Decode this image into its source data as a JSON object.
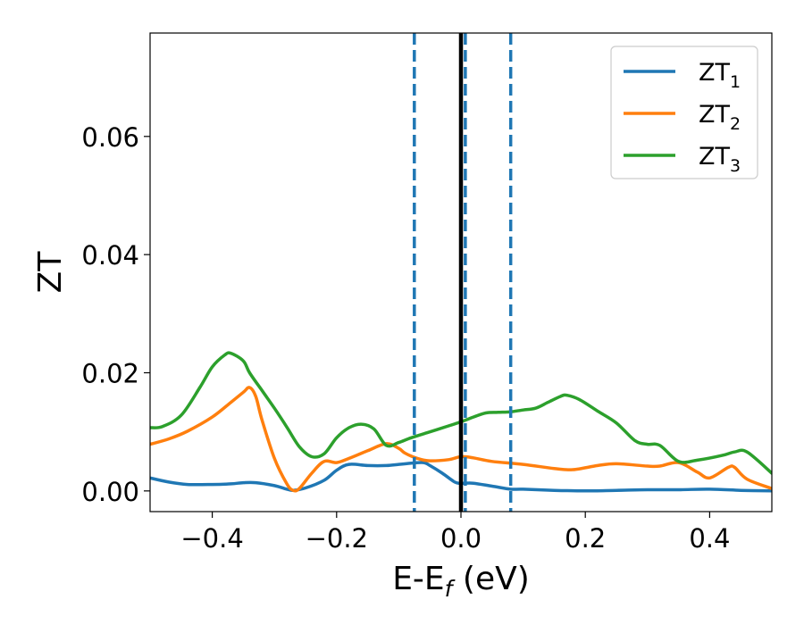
{
  "colors": {
    "zt1": "#1f77b4",
    "zt2": "#ff7f0e",
    "zt3": "#2ca02c",
    "fermi_line": "#000000",
    "dashed_lines": "#1f77b4"
  },
  "chart_data": {
    "type": "line",
    "xlabel": "E-E",
    "xlabel_sub": "f",
    "xlabel_unit": " (eV)",
    "ylabel": "ZT",
    "xlim": [
      -0.5,
      0.5
    ],
    "ylim": [
      -0.0035,
      0.0775
    ],
    "xticks": [
      -0.4,
      -0.2,
      0.0,
      0.2,
      0.4
    ],
    "xtick_labels": [
      "−0.4",
      "−0.2",
      "0.0",
      "0.2",
      "0.4"
    ],
    "yticks": [
      0.0,
      0.02,
      0.04,
      0.06
    ],
    "ytick_labels": [
      "0.00",
      "0.02",
      "0.04",
      "0.06"
    ],
    "legend_position": "top-right",
    "grid": false,
    "vertical_lines": [
      {
        "x": 0.0,
        "style": "solid",
        "color": "#000000"
      },
      {
        "x": -0.075,
        "style": "dashed",
        "color": "#1f77b4"
      },
      {
        "x": 0.007,
        "style": "dashed",
        "color": "#1f77b4"
      },
      {
        "x": 0.08,
        "style": "dashed",
        "color": "#1f77b4"
      }
    ],
    "series": [
      {
        "name": "ZT",
        "sub": "1",
        "color": "#1f77b4",
        "x": [
          -0.5,
          -0.47,
          -0.44,
          -0.4,
          -0.37,
          -0.35,
          -0.33,
          -0.3,
          -0.28,
          -0.27,
          -0.25,
          -0.22,
          -0.2,
          -0.18,
          -0.15,
          -0.12,
          -0.1,
          -0.08,
          -0.06,
          -0.05,
          -0.03,
          -0.01,
          0.0,
          0.02,
          0.05,
          0.08,
          0.1,
          0.15,
          0.2,
          0.25,
          0.3,
          0.35,
          0.4,
          0.45,
          0.5
        ],
        "y": [
          0.0022,
          0.0015,
          0.0011,
          0.0011,
          0.0012,
          0.0014,
          0.0014,
          0.0009,
          0.0003,
          0.0001,
          0.0005,
          0.0018,
          0.0035,
          0.0045,
          0.0043,
          0.0043,
          0.0045,
          0.0047,
          0.0048,
          0.0043,
          0.003,
          0.0015,
          0.0013,
          0.0013,
          0.0008,
          0.0003,
          0.0003,
          0.0001,
          0.0,
          0.0001,
          0.0002,
          0.0002,
          0.0003,
          0.0001,
          0.0
        ]
      },
      {
        "name": "ZT",
        "sub": "2",
        "color": "#ff7f0e",
        "x": [
          -0.5,
          -0.47,
          -0.44,
          -0.4,
          -0.37,
          -0.35,
          -0.34,
          -0.33,
          -0.32,
          -0.3,
          -0.28,
          -0.27,
          -0.26,
          -0.24,
          -0.22,
          -0.2,
          -0.18,
          -0.15,
          -0.12,
          -0.1,
          -0.09,
          -0.07,
          -0.05,
          -0.02,
          0.0,
          0.02,
          0.05,
          0.1,
          0.15,
          0.18,
          0.22,
          0.25,
          0.3,
          0.32,
          0.35,
          0.38,
          0.4,
          0.43,
          0.44,
          0.46,
          0.5
        ],
        "y": [
          0.0079,
          0.0088,
          0.0101,
          0.0125,
          0.015,
          0.0167,
          0.0175,
          0.016,
          0.012,
          0.0055,
          0.0012,
          0.0001,
          0.0004,
          0.003,
          0.005,
          0.0048,
          0.0055,
          0.0068,
          0.008,
          0.0072,
          0.0064,
          0.0055,
          0.0051,
          0.0053,
          0.0058,
          0.0056,
          0.005,
          0.0045,
          0.0038,
          0.0036,
          0.0043,
          0.0046,
          0.0042,
          0.0042,
          0.0048,
          0.0032,
          0.0022,
          0.004,
          0.004,
          0.002,
          0.0004
        ]
      },
      {
        "name": "ZT",
        "sub": "3",
        "color": "#2ca02c",
        "x": [
          -0.5,
          -0.48,
          -0.45,
          -0.42,
          -0.4,
          -0.38,
          -0.37,
          -0.35,
          -0.34,
          -0.32,
          -0.3,
          -0.28,
          -0.26,
          -0.24,
          -0.22,
          -0.2,
          -0.18,
          -0.16,
          -0.14,
          -0.12,
          -0.1,
          -0.08,
          -0.05,
          -0.02,
          0.0,
          0.02,
          0.04,
          0.06,
          0.08,
          0.1,
          0.12,
          0.14,
          0.16,
          0.17,
          0.19,
          0.22,
          0.25,
          0.28,
          0.3,
          0.32,
          0.35,
          0.38,
          0.42,
          0.44,
          0.46,
          0.5
        ],
        "y": [
          0.0107,
          0.0109,
          0.0128,
          0.0175,
          0.021,
          0.023,
          0.0233,
          0.022,
          0.02,
          0.017,
          0.014,
          0.0108,
          0.0075,
          0.0058,
          0.0063,
          0.009,
          0.0107,
          0.0113,
          0.0105,
          0.0077,
          0.0082,
          0.009,
          0.01,
          0.011,
          0.0117,
          0.0125,
          0.0132,
          0.0133,
          0.0134,
          0.0137,
          0.014,
          0.015,
          0.016,
          0.0162,
          0.0155,
          0.0135,
          0.0115,
          0.0085,
          0.0079,
          0.0077,
          0.005,
          0.0052,
          0.006,
          0.0066,
          0.0066,
          0.003
        ]
      }
    ]
  }
}
